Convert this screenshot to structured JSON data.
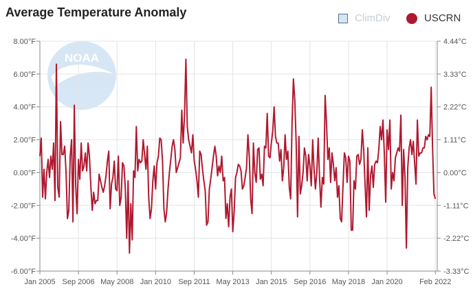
{
  "chart_data": {
    "type": "line",
    "title": "Average Temperature Anomaly",
    "legend": [
      {
        "name": "ClimDiv",
        "color": "#d4e6f6",
        "active": false,
        "marker": "square"
      },
      {
        "name": "USCRN",
        "color": "#b0182f",
        "active": true,
        "marker": "circle"
      }
    ],
    "y_left": {
      "ticks": [
        "8.00°F",
        "6.00°F",
        "4.00°F",
        "2.00°F",
        "0.00°F",
        "-2.00°F",
        "-4.00°F",
        "-6.00°F"
      ],
      "range": [
        -6,
        8
      ]
    },
    "y_right": {
      "ticks": [
        "4.44°C",
        "3.33°C",
        "2.22°C",
        "1.11°C",
        "0.00°C",
        "-1.11°C",
        "-2.22°C",
        "-3.33°C"
      ]
    },
    "x_ticks": [
      "Jan 2005",
      "Sep 2006",
      "May 2008",
      "Jan 2010",
      "Sep 2011",
      "May 2013",
      "Jan 2015",
      "Sep 2016",
      "May 2018",
      "Jan 2020",
      "Feb 2022"
    ],
    "x_start": "Jan 2005",
    "watermark": "NOAA",
    "series": [
      {
        "name": "USCRN",
        "color": "#b0182f",
        "values": [
          1.0,
          2.1,
          -1.5,
          0.2,
          -1.6,
          0.0,
          0.8,
          -0.3,
          1.0,
          0.2,
          1.8,
          -1.7,
          6.6,
          -0.9,
          -1.5,
          3.1,
          1.1,
          1.1,
          1.6,
          0.0,
          -2.8,
          -2.3,
          1.0,
          2.0,
          -3.0,
          4.1,
          -0.8,
          -2.5,
          0.8,
          -0.4,
          1.8,
          0.1,
          0.4,
          1.2,
          0.1,
          1.8,
          1.0,
          -0.9,
          -2.3,
          -1.2,
          -1.9,
          -1.7,
          -1.7,
          -0.1,
          -0.5,
          -0.9,
          -1.2,
          -0.8,
          -0.2,
          0.7,
          1.3,
          -2.2,
          -0.7,
          -0.3,
          0.7,
          -1.0,
          -1.1,
          1.0,
          -2.0,
          -1.5,
          0.6,
          0.4,
          -1.0,
          -4.0,
          -0.5,
          -4.9,
          -1.9,
          -4.1,
          0.1,
          -0.3,
          2.8,
          0.1,
          0.8,
          0.6,
          0.7,
          2.0,
          1.1,
          0.2,
          1.6,
          -1.5,
          -2.8,
          -2.2,
          -0.5,
          0.4,
          -1.0,
          0.6,
          1.0,
          2.1,
          2.0,
          0.7,
          -2.2,
          -3.0,
          -2.4,
          -1.0,
          0.0,
          0.8,
          1.6,
          2.0,
          1.4,
          0.0,
          0.3,
          0.6,
          0.9,
          3.8,
          1.8,
          3.5,
          6.9,
          2.8,
          2.0,
          1.6,
          1.2,
          2.3,
          0.7,
          0.2,
          -0.5,
          -1.5,
          1.3,
          1.1,
          0.2,
          -0.5,
          -1.1,
          -3.2,
          -3.0,
          -1.0,
          -0.4,
          0.3,
          1.0,
          1.6,
          1.0,
          -0.2,
          0.4,
          0.0,
          1.0,
          -0.5,
          -0.3,
          -2.8,
          -1.9,
          -3.3,
          -1.5,
          -1.0,
          -3.6,
          -2.4,
          -0.3,
          0.0,
          0.5,
          0.4,
          0.1,
          -1.0,
          -0.8,
          -0.3,
          0.3,
          2.3,
          1.0,
          -1.6,
          -2.5,
          1.8,
          0.0,
          -0.6,
          1.4,
          1.5,
          -0.4,
          -0.1,
          -0.8,
          1.6,
          1.5,
          3.6,
          1.0,
          0.9,
          1.8,
          2.5,
          4.0,
          2.2,
          1.8,
          1.8,
          0.7,
          1.4,
          -0.5,
          0.3,
          2.3,
          0.8,
          1.3,
          -0.9,
          -1.6,
          3.0,
          5.7,
          4.4,
          1.8,
          -2.7,
          2.2,
          -1.3,
          -0.8,
          0.0,
          1.5,
          1.0,
          -0.5,
          1.1,
          0.4,
          -0.8,
          2.0,
          0.2,
          -1.0,
          0.0,
          2.1,
          -0.3,
          -2.1,
          -0.3,
          -0.7,
          4.7,
          3.0,
          0.8,
          1.5,
          -0.6,
          1.2,
          0.5,
          -0.5,
          0.3,
          -1.5,
          -0.8,
          -2.8,
          -3.0,
          -0.8,
          1.2,
          0.9,
          -0.6,
          1.0,
          0.7,
          -3.5,
          -3.5,
          -0.5,
          -1.0,
          1.0,
          1.1,
          0.5,
          0.8,
          2.6,
          1.4,
          -0.7,
          -2.7,
          1.5,
          -2.3,
          -0.2,
          0.4,
          -0.9,
          0.5,
          0.7,
          0.6,
          1.4,
          2.8,
          2.0,
          3.2,
          1.2,
          -1.8,
          2.6,
          1.4,
          3.2,
          -1.0,
          0.0,
          -0.5,
          0.9,
          1.2,
          1.5,
          1.3,
          3.5,
          -2.0,
          1.4,
          -0.3,
          -4.6,
          0.3,
          1.5,
          2.0,
          1.1,
          1.9,
          0.6,
          -0.7,
          3.2,
          1.0,
          1.2,
          1.2,
          1.5,
          1.5,
          2.2,
          2.0,
          2.3,
          2.2,
          5.2,
          1.5,
          -1.3,
          -1.6
        ]
      }
    ]
  }
}
